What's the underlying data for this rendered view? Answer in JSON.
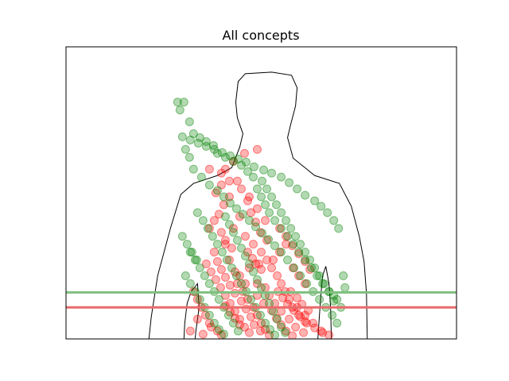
{
  "chart_data": {
    "type": "scatter",
    "title": "All concepts",
    "xlabel": "",
    "ylabel": "",
    "xlim": [
      0,
      490
    ],
    "ylim": [
      0,
      370
    ],
    "grid": false,
    "axis_ticks": false,
    "colors": {
      "red": "#ff0000",
      "green": "#008000",
      "red_line": "#e96b6b",
      "green_line": "#7fbf7f",
      "silhouette": "#000000"
    },
    "point_alpha": 0.3,
    "lines": [
      {
        "color": "green",
        "y": 59
      },
      {
        "color": "red",
        "y": 40
      }
    ],
    "silhouette": [
      [
        104,
        0
      ],
      [
        107,
        28
      ],
      [
        115,
        80
      ],
      [
        131,
        140
      ],
      [
        144,
        183
      ],
      [
        160,
        197
      ],
      [
        190,
        207
      ],
      [
        208,
        217
      ],
      [
        218,
        243
      ],
      [
        222,
        260
      ],
      [
        215,
        280
      ],
      [
        213,
        300
      ],
      [
        216,
        326
      ],
      [
        225,
        336
      ],
      [
        258,
        338
      ],
      [
        283,
        334
      ],
      [
        290,
        318
      ],
      [
        288,
        295
      ],
      [
        282,
        272
      ],
      [
        278,
        255
      ],
      [
        285,
        229
      ],
      [
        312,
        207
      ],
      [
        343,
        197
      ],
      [
        358,
        168
      ],
      [
        368,
        130
      ],
      [
        374,
        98
      ],
      [
        377,
        58
      ],
      [
        378,
        0
      ]
    ],
    "silhouette_left_arm": [
      [
        148,
        0
      ],
      [
        149,
        20
      ],
      [
        152,
        45
      ],
      [
        157,
        60
      ],
      [
        165,
        70
      ],
      [
        167,
        40
      ],
      [
        163,
        10
      ],
      [
        162,
        0
      ]
    ],
    "silhouette_right_arm": [
      [
        316,
        0
      ],
      [
        318,
        30
      ],
      [
        320,
        58
      ],
      [
        322,
        80
      ],
      [
        326,
        92
      ],
      [
        330,
        70
      ],
      [
        332,
        40
      ],
      [
        333,
        0
      ]
    ],
    "series": [
      {
        "color": "red",
        "points": [
          [
            180,
            215
          ],
          [
            195,
            210
          ],
          [
            205,
            200
          ],
          [
            230,
            180
          ],
          [
            240,
            165
          ],
          [
            250,
            150
          ],
          [
            210,
            140
          ],
          [
            218,
            155
          ],
          [
            225,
            130
          ],
          [
            235,
            120
          ],
          [
            245,
            110
          ],
          [
            252,
            100
          ],
          [
            258,
            90
          ],
          [
            265,
            80
          ],
          [
            270,
            70
          ],
          [
            275,
            60
          ],
          [
            280,
            50
          ],
          [
            290,
            40
          ],
          [
            300,
            30
          ],
          [
            310,
            20
          ],
          [
            320,
            10
          ],
          [
            330,
            5
          ],
          [
            200,
            120
          ],
          [
            205,
            100
          ],
          [
            212,
            85
          ],
          [
            215,
            70
          ],
          [
            222,
            60
          ],
          [
            228,
            50
          ],
          [
            235,
            40
          ],
          [
            240,
            30
          ],
          [
            245,
            20
          ],
          [
            250,
            12
          ],
          [
            255,
            5
          ],
          [
            160,
            60
          ],
          [
            165,
            50
          ],
          [
            170,
            40
          ],
          [
            175,
            30
          ],
          [
            180,
            20
          ],
          [
            190,
            10
          ],
          [
            195,
            5
          ],
          [
            230,
            90
          ],
          [
            238,
            95
          ],
          [
            245,
            88
          ],
          [
            260,
            100
          ],
          [
            268,
            110
          ],
          [
            276,
            120
          ],
          [
            285,
            90
          ],
          [
            292,
            80
          ],
          [
            300,
            70
          ],
          [
            240,
            70
          ],
          [
            250,
            65
          ],
          [
            255,
            55
          ],
          [
            262,
            45
          ],
          [
            270,
            35
          ],
          [
            280,
            25
          ],
          [
            288,
            15
          ],
          [
            298,
            8
          ],
          [
            215,
            200
          ],
          [
            220,
            190
          ],
          [
            228,
            175
          ],
          [
            232,
            160
          ],
          [
            238,
            148
          ],
          [
            244,
            135
          ],
          [
            252,
            125
          ],
          [
            205,
            180
          ],
          [
            198,
            170
          ],
          [
            192,
            158
          ],
          [
            186,
            150
          ],
          [
            180,
            140
          ],
          [
            195,
            135
          ],
          [
            200,
            125
          ],
          [
            208,
            115
          ],
          [
            186,
            110
          ],
          [
            190,
            98
          ],
          [
            195,
            88
          ],
          [
            200,
            78
          ],
          [
            206,
            68
          ],
          [
            212,
            58
          ],
          [
            220,
            48
          ],
          [
            226,
            38
          ],
          [
            232,
            28
          ],
          [
            236,
            18
          ],
          [
            244,
            10
          ],
          [
            266,
            60
          ],
          [
            272,
            52
          ],
          [
            278,
            44
          ],
          [
            286,
            36
          ],
          [
            294,
            28
          ],
          [
            302,
            20
          ],
          [
            312,
            14
          ],
          [
            322,
            8
          ],
          [
            156,
            10
          ],
          [
            172,
            6
          ],
          [
            182,
            15
          ],
          [
            165,
            25
          ],
          [
            225,
            70
          ],
          [
            218,
            80
          ],
          [
            240,
            55
          ],
          [
            248,
            45
          ],
          [
            258,
            36
          ],
          [
            264,
            26
          ],
          [
            270,
            18
          ],
          [
            276,
            10
          ],
          [
            284,
            4
          ],
          [
            228,
            110
          ],
          [
            234,
            102
          ],
          [
            242,
            95
          ],
          [
            282,
            60
          ],
          [
            290,
            52
          ],
          [
            296,
            44
          ],
          [
            304,
            36
          ],
          [
            284,
            40
          ],
          [
            292,
            30
          ],
          [
            300,
            22
          ],
          [
            176,
            95
          ],
          [
            182,
            85
          ],
          [
            188,
            75
          ],
          [
            194,
            65
          ],
          [
            200,
            55
          ],
          [
            206,
            45
          ],
          [
            212,
            35
          ],
          [
            218,
            25
          ],
          [
            224,
            15
          ],
          [
            230,
            8
          ],
          [
            240,
            240
          ],
          [
            224,
            235
          ],
          [
            210,
            225
          ],
          [
            200,
            215
          ],
          [
            195,
            195
          ],
          [
            188,
            185
          ],
          [
            268,
            140
          ],
          [
            276,
            130
          ],
          [
            284,
            118
          ],
          [
            292,
            108
          ],
          [
            300,
            98
          ],
          [
            306,
            88
          ],
          [
            200,
            42
          ],
          [
            206,
            34
          ],
          [
            212,
            26
          ],
          [
            218,
            18
          ]
        ]
      },
      {
        "color": "green",
        "points": [
          [
            140,
            300
          ],
          [
            143,
            290
          ],
          [
            148,
            300
          ],
          [
            155,
            275
          ],
          [
            160,
            260
          ],
          [
            168,
            255
          ],
          [
            176,
            250
          ],
          [
            185,
            245
          ],
          [
            190,
            235
          ],
          [
            200,
            230
          ],
          [
            210,
            225
          ],
          [
            220,
            220
          ],
          [
            228,
            212
          ],
          [
            235,
            205
          ],
          [
            240,
            190
          ],
          [
            245,
            180
          ],
          [
            250,
            170
          ],
          [
            255,
            160
          ],
          [
            262,
            150
          ],
          [
            270,
            140
          ],
          [
            278,
            130
          ],
          [
            285,
            120
          ],
          [
            292,
            110
          ],
          [
            300,
            100
          ],
          [
            308,
            90
          ],
          [
            315,
            80
          ],
          [
            322,
            70
          ],
          [
            330,
            60
          ],
          [
            336,
            55
          ],
          [
            340,
            50
          ],
          [
            345,
            40
          ],
          [
            350,
            65
          ],
          [
            348,
            80
          ],
          [
            150,
            240
          ],
          [
            155,
            230
          ],
          [
            160,
            215
          ],
          [
            170,
            205
          ],
          [
            180,
            195
          ],
          [
            190,
            188
          ],
          [
            198,
            180
          ],
          [
            206,
            172
          ],
          [
            214,
            165
          ],
          [
            222,
            158
          ],
          [
            230,
            150
          ],
          [
            238,
            142
          ],
          [
            246,
            134
          ],
          [
            254,
            126
          ],
          [
            262,
            118
          ],
          [
            270,
            110
          ],
          [
            278,
            100
          ],
          [
            286,
            90
          ],
          [
            294,
            80
          ],
          [
            302,
            70
          ],
          [
            310,
            60
          ],
          [
            318,
            50
          ],
          [
            326,
            40
          ],
          [
            334,
            30
          ],
          [
            340,
            20
          ],
          [
            200,
            155
          ],
          [
            205,
            145
          ],
          [
            210,
            135
          ],
          [
            215,
            125
          ],
          [
            220,
            115
          ],
          [
            225,
            105
          ],
          [
            230,
            95
          ],
          [
            235,
            85
          ],
          [
            240,
            75
          ],
          [
            245,
            65
          ],
          [
            250,
            55
          ],
          [
            255,
            45
          ],
          [
            260,
            35
          ],
          [
            265,
            25
          ],
          [
            270,
            15
          ],
          [
            275,
            8
          ],
          [
            165,
            160
          ],
          [
            172,
            150
          ],
          [
            178,
            140
          ],
          [
            184,
            130
          ],
          [
            190,
            120
          ],
          [
            196,
            110
          ],
          [
            202,
            100
          ],
          [
            208,
            90
          ],
          [
            214,
            80
          ],
          [
            220,
            70
          ],
          [
            226,
            60
          ],
          [
            232,
            50
          ],
          [
            238,
            40
          ],
          [
            244,
            30
          ],
          [
            250,
            20
          ],
          [
            256,
            12
          ],
          [
            262,
            5
          ],
          [
            150,
            80
          ],
          [
            156,
            70
          ],
          [
            162,
            60
          ],
          [
            168,
            50
          ],
          [
            174,
            40
          ],
          [
            180,
            30
          ],
          [
            186,
            20
          ],
          [
            192,
            12
          ],
          [
            198,
            6
          ],
          [
            312,
            175
          ],
          [
            320,
            168
          ],
          [
            328,
            160
          ],
          [
            336,
            150
          ],
          [
            342,
            140
          ],
          [
            300,
            182
          ],
          [
            290,
            190
          ],
          [
            280,
            198
          ],
          [
            270,
            205
          ],
          [
            258,
            210
          ],
          [
            248,
            214
          ],
          [
            236,
            218
          ],
          [
            226,
            224
          ],
          [
            216,
            228
          ],
          [
            206,
            232
          ],
          [
            196,
            236
          ],
          [
            186,
            240
          ],
          [
            176,
            244
          ],
          [
            166,
            248
          ],
          [
            156,
            252
          ],
          [
            146,
            256
          ],
          [
            246,
            200
          ],
          [
            252,
            190
          ],
          [
            258,
            180
          ],
          [
            264,
            170
          ],
          [
            270,
            160
          ],
          [
            276,
            150
          ],
          [
            282,
            140
          ],
          [
            288,
            130
          ],
          [
            294,
            120
          ],
          [
            300,
            110
          ],
          [
            306,
            100
          ],
          [
            312,
            90
          ],
          [
            318,
            80
          ],
          [
            324,
            70
          ],
          [
            330,
            60
          ],
          [
            336,
            48
          ],
          [
            156,
            110
          ],
          [
            162,
            100
          ],
          [
            168,
            90
          ],
          [
            174,
            80
          ],
          [
            180,
            70
          ],
          [
            186,
            60
          ],
          [
            192,
            50
          ],
          [
            198,
            40
          ],
          [
            204,
            30
          ],
          [
            210,
            20
          ],
          [
            216,
            10
          ],
          [
            146,
            130
          ],
          [
            152,
            120
          ],
          [
            158,
            110
          ],
          [
            164,
            100
          ]
        ]
      }
    ]
  }
}
